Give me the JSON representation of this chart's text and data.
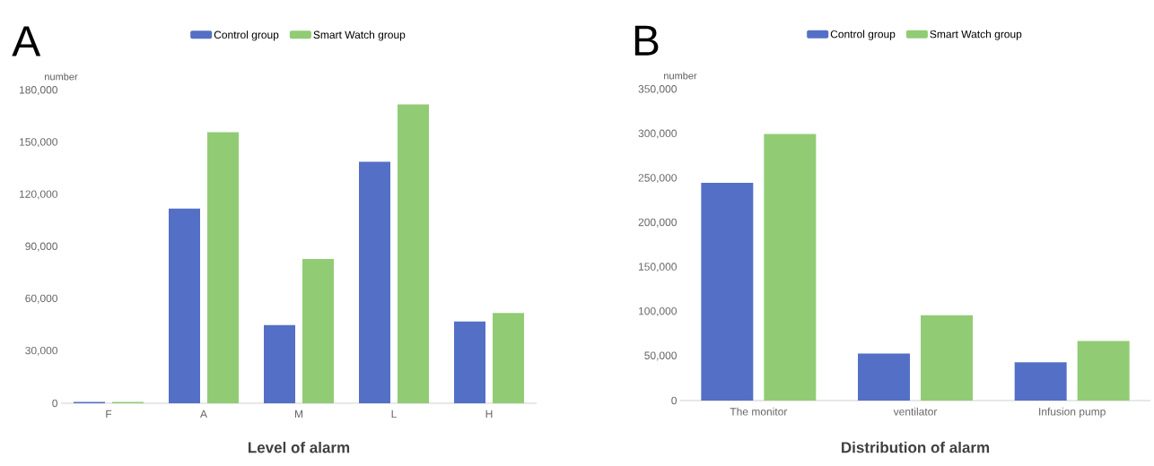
{
  "chart_data": [
    {
      "type": "bar",
      "annotations": [
        "A"
      ],
      "xlabel": "Level of alarm",
      "ylabel": "number",
      "categories": [
        "F",
        "A",
        "M",
        "L",
        "H"
      ],
      "series": [
        {
          "name": "Control group",
          "color": "#5470c6",
          "values": [
            800,
            112000,
            45000,
            139000,
            47000
          ]
        },
        {
          "name": "Smart Watch group",
          "color": "#91cc75",
          "values": [
            800,
            156000,
            83000,
            172000,
            52000
          ]
        }
      ],
      "ylim": [
        0,
        180000
      ],
      "yticks": [
        0,
        {
          "value": 30000,
          "label": "30,000"
        },
        {
          "value": 60000,
          "label": "60,000"
        },
        {
          "value": 90000,
          "label": "90,000"
        },
        {
          "value": 120000,
          "label": "120,000"
        },
        {
          "value": 150000,
          "label": "150,000"
        },
        {
          "value": 180000,
          "label": "180,000"
        }
      ],
      "legend": "top"
    },
    {
      "type": "bar",
      "annotations": [
        "B"
      ],
      "xlabel": "Distribution of alarm",
      "ylabel": "number",
      "categories": [
        "The monitor",
        "ventilator",
        "Infusion pump"
      ],
      "series": [
        {
          "name": "Control group",
          "color": "#5470c6",
          "values": [
            245000,
            53000,
            43000
          ]
        },
        {
          "name": "Smart Watch group",
          "color": "#91cc75",
          "values": [
            300000,
            96000,
            67000
          ]
        }
      ],
      "ylim": [
        0,
        350000
      ],
      "yticks": [
        0,
        {
          "value": 50000,
          "label": "50,000"
        },
        {
          "value": 100000,
          "label": "100,000"
        },
        {
          "value": 150000,
          "label": "150,000"
        },
        {
          "value": 200000,
          "label": "200,000"
        },
        {
          "value": 250000,
          "label": "250,000"
        },
        {
          "value": 300000,
          "label": "300,000"
        },
        {
          "value": 350000,
          "label": "350,000"
        }
      ],
      "legend": "top"
    }
  ]
}
